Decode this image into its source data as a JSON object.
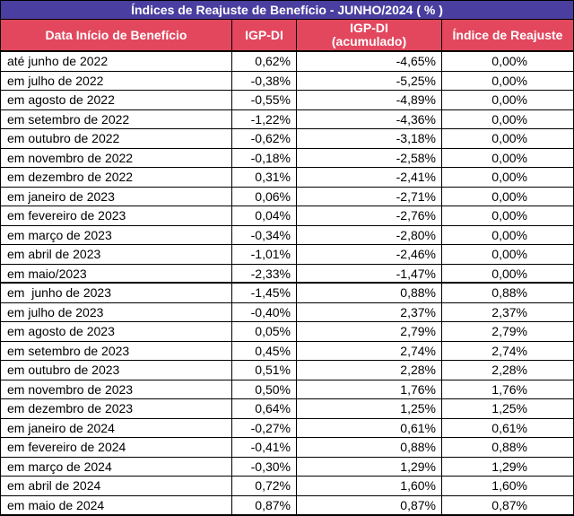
{
  "title": "Índices de Reajuste de Benefício - JUNHO/2024 ( % )",
  "headers": {
    "col1": "Data Início de Benefício",
    "col2": "IGP-DI",
    "col3_line1": "IGP-DI",
    "col3_line2": "(acumulado)",
    "col4": "Índice de Reajuste"
  },
  "colors": {
    "title_bg": "#4a3ea0",
    "header_bg": "#e2475e"
  },
  "rows": [
    {
      "data": "até junho de 2022",
      "igp": "0,62%",
      "acum": "-4,65%",
      "indice": "0,00%"
    },
    {
      "data": "em julho de 2022",
      "igp": "-0,38%",
      "acum": "-5,25%",
      "indice": "0,00%"
    },
    {
      "data": "em agosto de 2022",
      "igp": "-0,55%",
      "acum": "-4,89%",
      "indice": "0,00%"
    },
    {
      "data": "em setembro de 2022",
      "igp": "-1,22%",
      "acum": "-4,36%",
      "indice": "0,00%"
    },
    {
      "data": "em outubro de 2022",
      "igp": "-0,62%",
      "acum": "-3,18%",
      "indice": "0,00%"
    },
    {
      "data": "em novembro de 2022",
      "igp": "-0,18%",
      "acum": "-2,58%",
      "indice": "0,00%"
    },
    {
      "data": "em dezembro de 2022",
      "igp": "0,31%",
      "acum": "-2,41%",
      "indice": "0,00%"
    },
    {
      "data": "em janeiro de 2023",
      "igp": "0,06%",
      "acum": "-2,71%",
      "indice": "0,00%"
    },
    {
      "data": "em fevereiro de 2023",
      "igp": "0,04%",
      "acum": "-2,76%",
      "indice": "0,00%"
    },
    {
      "data": "em março de 2023",
      "igp": "-0,34%",
      "acum": "-2,80%",
      "indice": "0,00%"
    },
    {
      "data": "em abril de 2023",
      "igp": "-1,01%",
      "acum": "-2,46%",
      "indice": "0,00%"
    },
    {
      "data": "em maio/2023",
      "igp": "-2,33%",
      "acum": "-1,47%",
      "indice": "0,00%"
    },
    {
      "data": "em  junho de 2023",
      "igp": "-1,45%",
      "acum": "0,88%",
      "indice": "0,88%"
    },
    {
      "data": "em julho de 2023",
      "igp": "-0,40%",
      "acum": "2,37%",
      "indice": "2,37%"
    },
    {
      "data": "em agosto de 2023",
      "igp": "0,05%",
      "acum": "2,79%",
      "indice": "2,79%"
    },
    {
      "data": "em setembro de 2023",
      "igp": "0,45%",
      "acum": "2,74%",
      "indice": "2,74%"
    },
    {
      "data": "em outubro de 2023",
      "igp": "0,51%",
      "acum": "2,28%",
      "indice": "2,28%"
    },
    {
      "data": "em novembro de 2023",
      "igp": "0,50%",
      "acum": "1,76%",
      "indice": "1,76%"
    },
    {
      "data": "em dezembro de 2023",
      "igp": "0,64%",
      "acum": "1,25%",
      "indice": "1,25%"
    },
    {
      "data": "em janeiro de 2024",
      "igp": "-0,27%",
      "acum": "0,61%",
      "indice": "0,61%"
    },
    {
      "data": "em fevereiro de 2024",
      "igp": "-0,41%",
      "acum": "0,88%",
      "indice": "0,88%"
    },
    {
      "data": "em março de 2024",
      "igp": "-0,30%",
      "acum": "1,29%",
      "indice": "1,29%"
    },
    {
      "data": "em abril de 2024",
      "igp": "0,72%",
      "acum": "1,60%",
      "indice": "1,60%"
    },
    {
      "data": "em maio de 2024",
      "igp": "0,87%",
      "acum": "0,87%",
      "indice": "0,87%"
    }
  ]
}
